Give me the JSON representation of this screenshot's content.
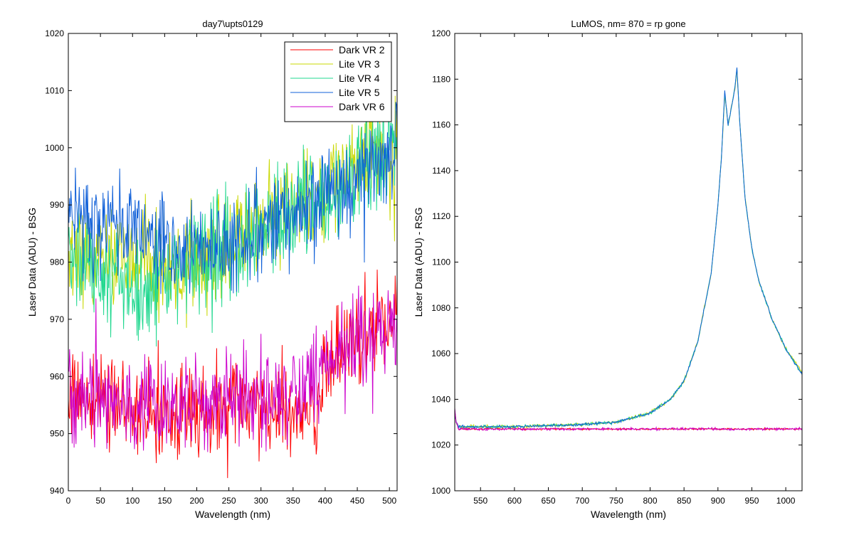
{
  "chart_data": [
    {
      "type": "line",
      "title": "day7\\upts0129",
      "xlabel": "Wavelength (nm)",
      "ylabel": "Laser Data (ADU) - BSG",
      "xlim": [
        0,
        512
      ],
      "ylim": [
        940,
        1020
      ],
      "xticks": [
        0,
        50,
        100,
        150,
        200,
        250,
        300,
        350,
        400,
        450,
        500
      ],
      "yticks": [
        940,
        950,
        960,
        970,
        980,
        990,
        1000,
        1010,
        1020
      ],
      "grid": false,
      "legend": "top-right",
      "series": [
        {
          "name": "Dark VR 2",
          "color": "#ff0000",
          "x": [
            0,
            50,
            100,
            150,
            200,
            250,
            300,
            350,
            390,
            400,
            450,
            500,
            512
          ],
          "y": [
            957,
            956,
            954,
            954,
            954,
            955,
            954,
            952,
            955,
            962,
            966,
            970,
            971
          ]
        },
        {
          "name": "Lite VR 3",
          "color": "#c8d800",
          "x": [
            0,
            50,
            100,
            150,
            200,
            250,
            300,
            350,
            400,
            450,
            500,
            512
          ],
          "y": [
            981,
            981,
            981,
            979,
            980,
            982,
            986,
            989,
            993,
            998,
            1001,
            1002
          ]
        },
        {
          "name": "Lite VR 4",
          "color": "#22d890",
          "x": [
            0,
            50,
            100,
            150,
            200,
            250,
            300,
            350,
            400,
            450,
            500,
            512
          ],
          "y": [
            980,
            978,
            976,
            977,
            980,
            983,
            986,
            989,
            992,
            996,
            1000,
            1001
          ]
        },
        {
          "name": "Lite VR 5",
          "color": "#1060d8",
          "x": [
            0,
            50,
            100,
            150,
            200,
            250,
            300,
            350,
            400,
            450,
            500,
            512
          ],
          "y": [
            989,
            987,
            985,
            983,
            982,
            983,
            986,
            989,
            991,
            994,
            999,
            1002
          ]
        },
        {
          "name": "Dark VR 6",
          "color": "#cc00cc",
          "x": [
            0,
            50,
            100,
            150,
            200,
            250,
            300,
            350,
            400,
            450,
            500,
            512
          ],
          "y": [
            957,
            956,
            955,
            955,
            955,
            956,
            956,
            957,
            961,
            966,
            969,
            970
          ]
        }
      ]
    },
    {
      "type": "line",
      "title": "LuMOS, nm= 870 = rp gone",
      "xlabel": "Wavelength (nm)",
      "ylabel": "Laser Data (ADU) - RSG",
      "xlim": [
        512,
        1024
      ],
      "ylim": [
        1000,
        1200
      ],
      "xticks": [
        550,
        600,
        650,
        700,
        750,
        800,
        850,
        900,
        950,
        1000
      ],
      "yticks": [
        1000,
        1020,
        1040,
        1060,
        1080,
        1100,
        1120,
        1140,
        1160,
        1180,
        1200
      ],
      "grid": false,
      "series": [
        {
          "color": "#ff0000",
          "x": [
            512,
            514,
            518,
            525,
            1024
          ],
          "y": [
            1035,
            1030,
            1027,
            1027,
            1027
          ]
        },
        {
          "color": "#c8d800",
          "x": [
            512,
            514,
            518,
            525,
            600,
            700,
            750,
            800,
            830,
            850,
            870,
            890,
            900,
            905,
            910,
            915,
            920,
            925,
            928,
            932,
            940,
            950,
            960,
            980,
            1000,
            1024
          ],
          "y": [
            1035,
            1030,
            1028,
            1028,
            1028,
            1029,
            1030,
            1034,
            1040,
            1048,
            1065,
            1095,
            1125,
            1145,
            1173,
            1160,
            1168,
            1176,
            1184,
            1162,
            1128,
            1106,
            1092,
            1075,
            1062,
            1052
          ]
        },
        {
          "color": "#22d890",
          "x": [
            512,
            514,
            518,
            525,
            600,
            700,
            750,
            800,
            830,
            850,
            870,
            890,
            900,
            905,
            910,
            915,
            920,
            925,
            928,
            932,
            940,
            950,
            960,
            980,
            1000,
            1024
          ],
          "y": [
            1035,
            1030,
            1028,
            1028,
            1028,
            1029,
            1030,
            1034,
            1040,
            1048,
            1065,
            1095,
            1125,
            1145,
            1174,
            1160,
            1168,
            1176,
            1185,
            1162,
            1128,
            1106,
            1092,
            1075,
            1062,
            1051
          ]
        },
        {
          "color": "#1060d8",
          "x": [
            512,
            514,
            518,
            525,
            600,
            700,
            750,
            800,
            830,
            850,
            870,
            890,
            900,
            905,
            910,
            915,
            920,
            925,
            928,
            932,
            940,
            950,
            960,
            980,
            1000,
            1024
          ],
          "y": [
            1035,
            1030,
            1028,
            1028,
            1028,
            1029,
            1030,
            1034,
            1040,
            1048,
            1065,
            1095,
            1125,
            1145,
            1175,
            1160,
            1168,
            1176,
            1185,
            1162,
            1128,
            1106,
            1092,
            1075,
            1062,
            1051
          ]
        },
        {
          "color": "#cc00cc",
          "x": [
            512,
            514,
            518,
            525,
            1024
          ],
          "y": [
            1036,
            1030,
            1027,
            1027,
            1027
          ]
        }
      ]
    }
  ]
}
